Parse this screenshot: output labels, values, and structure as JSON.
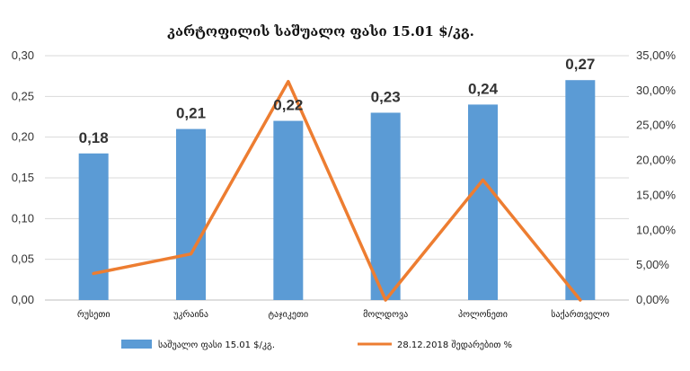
{
  "colors": {
    "bars": "#5b9bd5",
    "line": "#ed7d31",
    "grid": "#d9d9d9",
    "axis": "#bfbfbf"
  },
  "chart_data": {
    "type": "bar",
    "title": "კარტოფილის საშუალო ფასი 15.01 $/კგ.",
    "categories": [
      "რუსეთი",
      "უკრაინა",
      "ტაჯიკეთი",
      "მოლდოვა",
      "პოლონეთი",
      "საქართველო"
    ],
    "series": [
      {
        "name": "საშუალო ფასი 15.01 $/კგ.",
        "type": "bar",
        "axis": "left",
        "values": [
          0.18,
          0.21,
          0.22,
          0.23,
          0.24,
          0.27
        ],
        "data_labels": [
          "0,18",
          "0,21",
          "0,22",
          "0,23",
          "0,24",
          "0,27"
        ]
      },
      {
        "name": "28.12.2018 შედარებით %",
        "type": "line",
        "axis": "right",
        "values": [
          3.8,
          6.6,
          31.3,
          0.0,
          17.2,
          0.0
        ]
      }
    ],
    "ylim_left": [
      0,
      0.3
    ],
    "ylim_right": [
      0,
      35
    ],
    "left_ticks": [
      "0,00",
      "0,05",
      "0,10",
      "0,15",
      "0,20",
      "0,25",
      "0,30"
    ],
    "right_ticks": [
      "0,00%",
      "5,00%",
      "10,00%",
      "15,00%",
      "20,00%",
      "25,00%",
      "30,00%",
      "35,00%"
    ],
    "grid": true,
    "legend_position": "bottom"
  }
}
